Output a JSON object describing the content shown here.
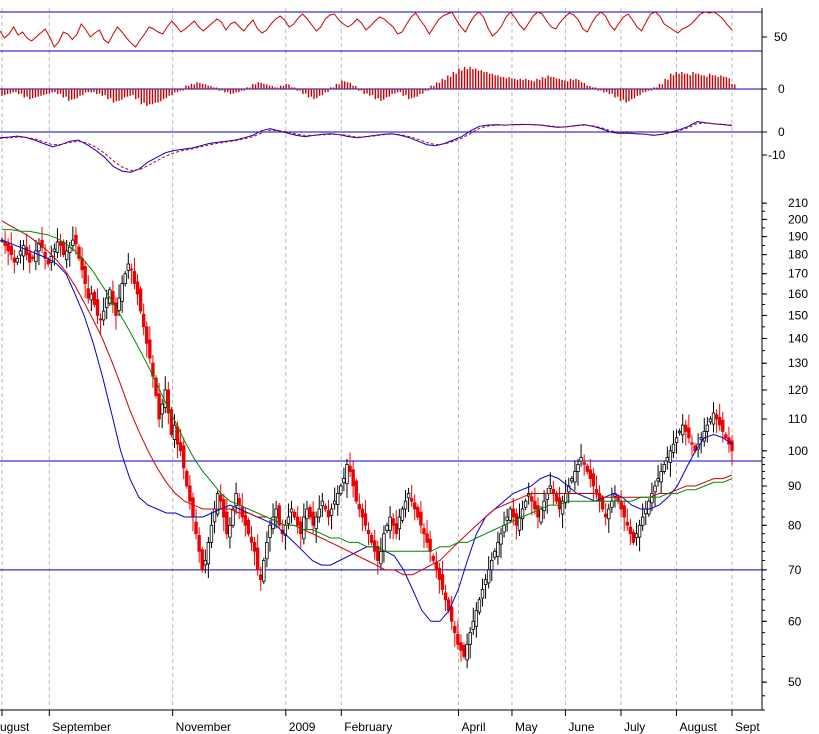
{
  "chart_data": [
    {
      "panel": "oscillator",
      "type": "line",
      "y_ticks": [
        {
          "value": 50,
          "label": "50"
        }
      ],
      "reference_lines": [
        100,
        22
      ],
      "series": [
        {
          "color": "#cc0000",
          "values": [
            62,
            48,
            56,
            70,
            54,
            60,
            48,
            42,
            50,
            58,
            66,
            50,
            30,
            40,
            60,
            56,
            45,
            55,
            76,
            64,
            50,
            58,
            64,
            45,
            38,
            55,
            70,
            60,
            48,
            38,
            30,
            44,
            56,
            70,
            66,
            60,
            56,
            70,
            82,
            72,
            60,
            66,
            74,
            82,
            70,
            62,
            70,
            78,
            86,
            80,
            64,
            76,
            80,
            70,
            62,
            74,
            84,
            66,
            58,
            64,
            76,
            86,
            92,
            84,
            70,
            76,
            88,
            96,
            86,
            74,
            62,
            70,
            86,
            94,
            96,
            84,
            76,
            70,
            76,
            86,
            78,
            64,
            72,
            82,
            90,
            86,
            78,
            70,
            56,
            60,
            76,
            90,
            98,
            84,
            72,
            56,
            70,
            84,
            92,
            96,
            100,
            84,
            70,
            60,
            78,
            92,
            100,
            90,
            68,
            52,
            60,
            72,
            90,
            100,
            88,
            74,
            64,
            78,
            92,
            100,
            96,
            82,
            70,
            66,
            80,
            90,
            98,
            94,
            84,
            66,
            60,
            78,
            92,
            100,
            92,
            74,
            64,
            78,
            90,
            96,
            84,
            70,
            62,
            80,
            96,
            100,
            92,
            76,
            70,
            64,
            58,
            66,
            70,
            76,
            86,
            96,
            100,
            98,
            100,
            94,
            86,
            74,
            64
          ]
        }
      ]
    },
    {
      "panel": "histogram",
      "type": "bar",
      "y_ticks": [
        {
          "value": 0,
          "label": "0"
        }
      ],
      "zero_line": 0,
      "values": [
        -0.4,
        -0.3,
        -0.2,
        -0.3,
        -0.5,
        -0.6,
        -0.5,
        -0.4,
        -0.3,
        -0.2,
        -0.3,
        -0.5,
        -0.7,
        -0.6,
        -0.4,
        -0.2,
        -0.2,
        -0.3,
        -0.4,
        -0.6,
        -0.8,
        -0.7,
        -0.5,
        -0.4,
        -0.6,
        -0.9,
        -1.0,
        -0.9,
        -0.8,
        -0.6,
        -0.4,
        -0.2,
        -0.1,
        0.2,
        0.3,
        0.4,
        0.3,
        0.2,
        0.1,
        -0.1,
        -0.2,
        -0.3,
        -0.2,
        -0.1,
        0.1,
        0.3,
        0.4,
        0.3,
        0.2,
        0.1,
        0.2,
        0.3,
        0.1,
        -0.1,
        -0.3,
        -0.5,
        -0.6,
        -0.4,
        -0.2,
        0.1,
        0.3,
        0.5,
        0.4,
        0.2,
        -0.1,
        -0.3,
        -0.4,
        -0.6,
        -0.7,
        -0.5,
        -0.3,
        -0.2,
        -0.4,
        -0.6,
        -0.5,
        -0.3,
        -0.1,
        0.2,
        0.4,
        0.6,
        0.8,
        1.0,
        1.2,
        1.3,
        1.3,
        1.2,
        1.1,
        1.0,
        0.9,
        0.8,
        0.7,
        0.7,
        0.6,
        0.6,
        0.6,
        0.5,
        0.6,
        0.7,
        0.8,
        0.7,
        0.6,
        0.5,
        0.6,
        0.6,
        0.4,
        0.2,
        0.1,
        -0.1,
        -0.2,
        -0.3,
        -0.5,
        -0.7,
        -0.8,
        -0.6,
        -0.4,
        -0.2,
        -0.1,
        0.1,
        0.3,
        0.6,
        0.9,
        1.0,
        1.0,
        0.9,
        1.0,
        0.9,
        0.8,
        0.9,
        0.8,
        0.8,
        0.7,
        0.3
      ]
    },
    {
      "panel": "macd",
      "type": "line",
      "y_ticks": [
        {
          "value": 0,
          "label": "0"
        },
        {
          "value": -10,
          "label": "-10"
        }
      ],
      "zero_line": 0,
      "series": [
        {
          "style": "solid",
          "color": "#0000cc",
          "values": [
            -2.5,
            -2.2,
            -1.8,
            -2.4,
            -3.5,
            -5.0,
            -6.5,
            -5.5,
            -4.0,
            -3.5,
            -5.5,
            -8.0,
            -11,
            -15,
            -17,
            -17.5,
            -16,
            -13,
            -11,
            -9,
            -8,
            -7.5,
            -7,
            -6,
            -5,
            -4.5,
            -4,
            -3.5,
            -2.5,
            -1.5,
            0.5,
            1.5,
            0.5,
            -0.5,
            -1.5,
            -2,
            -1.5,
            -1,
            -0.8,
            -1.2,
            -2.0,
            -2.5,
            -2.0,
            -1.5,
            -1.0,
            -0.8,
            -1.5,
            -2.5,
            -4.0,
            -5.5,
            -6.0,
            -5.0,
            -3.5,
            -2.0,
            0.5,
            2.5,
            3.0,
            3.2,
            3.0,
            3.2,
            3.3,
            3.2,
            3.0,
            2.5,
            2.0,
            2.3,
            2.8,
            3.2,
            2.5,
            1.5,
            0,
            -0.5,
            -0.5,
            -0.8,
            -1.0,
            -1.5,
            -1.0,
            0,
            1.0,
            2.5,
            4.5,
            4.0,
            3.5,
            3.2,
            2.8
          ]
        },
        {
          "style": "dashed",
          "color": "#cc0000",
          "values": [
            -2.8,
            -2.5,
            -2.2,
            -2.3,
            -3.0,
            -4.2,
            -5.5,
            -5.4,
            -4.6,
            -4.0,
            -4.8,
            -6.6,
            -9.2,
            -12.5,
            -15.2,
            -16.7,
            -16.4,
            -14.6,
            -12.5,
            -10.5,
            -9.0,
            -8.0,
            -7.4,
            -6.5,
            -5.6,
            -4.9,
            -4.3,
            -3.8,
            -3.0,
            -2.1,
            -0.5,
            0.8,
            0.6,
            0,
            -0.9,
            -1.5,
            -1.5,
            -1.2,
            -1.0,
            -1.1,
            -1.6,
            -2.2,
            -2.1,
            -1.7,
            -1.2,
            -0.9,
            -1.2,
            -2.0,
            -3.2,
            -4.6,
            -5.5,
            -5.2,
            -4.1,
            -2.7,
            -0.6,
            1.6,
            2.6,
            3.0,
            3.0,
            3.1,
            3.2,
            3.2,
            3.1,
            2.7,
            2.2,
            2.2,
            2.6,
            3.0,
            2.7,
            1.9,
            0.6,
            -0.2,
            -0.4,
            -0.7,
            -0.9,
            -1.3,
            -1.1,
            -0.3,
            0.6,
            1.9,
            3.7,
            3.9,
            3.6,
            3.3,
            3.0
          ]
        }
      ]
    },
    {
      "panel": "price",
      "type": "candlestick",
      "y_scale": "log",
      "y_ticks": [
        {
          "value": 210,
          "label": "210"
        },
        {
          "value": 200,
          "label": "200"
        },
        {
          "value": 190,
          "label": "190"
        },
        {
          "value": 180,
          "label": "180"
        },
        {
          "value": 170,
          "label": "170"
        },
        {
          "value": 160,
          "label": "160"
        },
        {
          "value": 150,
          "label": "150"
        },
        {
          "value": 140,
          "label": "140"
        },
        {
          "value": 130,
          "label": "130"
        },
        {
          "value": 120,
          "label": "120"
        },
        {
          "value": 110,
          "label": "110"
        },
        {
          "value": 100,
          "label": "100"
        },
        {
          "value": 90,
          "label": "90"
        },
        {
          "value": 80,
          "label": "80"
        },
        {
          "value": 70,
          "label": "70"
        },
        {
          "value": 60,
          "label": "60"
        },
        {
          "value": 50,
          "label": "50"
        }
      ],
      "x_labels": [
        {
          "label": "August",
          "at": 0
        },
        {
          "label": "September",
          "at": 23
        },
        {
          "label": "November",
          "at": 83
        },
        {
          "label": "2009",
          "at": 138
        },
        {
          "label": "February",
          "at": 165
        },
        {
          "label": "April",
          "at": 222
        },
        {
          "label": "May",
          "at": 248
        },
        {
          "label": "June",
          "at": 274
        },
        {
          "label": "July",
          "at": 301
        },
        {
          "label": "August",
          "at": 328
        },
        {
          "label": "Sept",
          "at": 355
        }
      ],
      "reference_lines": [
        97,
        70
      ],
      "close": [
        188,
        185,
        182,
        180,
        176,
        178,
        182,
        185,
        180,
        176,
        178,
        182,
        186,
        184,
        178,
        175,
        179,
        183,
        187,
        185,
        180,
        182,
        184,
        188,
        186,
        178,
        172,
        165,
        158,
        160,
        155,
        150,
        148,
        152,
        158,
        162,
        155,
        150,
        158,
        165,
        170,
        175,
        172,
        165,
        160,
        152,
        145,
        138,
        132,
        125,
        118,
        110,
        115,
        120,
        112,
        105,
        108,
        102,
        100,
        95,
        90,
        86,
        82,
        78,
        74,
        70,
        72,
        76,
        80,
        84,
        88,
        86,
        82,
        78,
        80,
        84,
        88,
        85,
        82,
        80,
        78,
        76,
        74,
        70,
        68,
        72,
        76,
        80,
        82,
        84,
        80,
        78,
        80,
        82,
        84,
        82,
        80,
        78,
        82,
        84,
        82,
        80,
        82,
        84,
        86,
        84,
        82,
        84,
        86,
        88,
        90,
        92,
        96,
        94,
        90,
        86,
        84,
        82,
        80,
        78,
        76,
        74,
        72,
        74,
        78,
        80,
        82,
        80,
        78,
        82,
        84,
        86,
        88,
        86,
        84,
        82,
        80,
        78,
        76,
        74,
        72,
        70,
        68,
        66,
        64,
        62,
        60,
        58,
        56,
        55,
        54,
        56,
        58,
        60,
        62,
        64,
        66,
        68,
        70,
        72,
        74,
        76,
        78,
        80,
        82,
        84,
        82,
        80,
        82,
        84,
        86,
        88,
        86,
        84,
        82,
        84,
        86,
        88,
        90,
        88,
        86,
        84,
        86,
        88,
        90,
        92,
        94,
        96,
        98,
        96,
        94,
        92,
        90,
        88,
        86,
        84,
        82,
        84,
        86,
        88,
        86,
        84,
        82,
        80,
        78,
        76,
        78,
        80,
        82,
        84,
        86,
        88,
        90,
        92,
        94,
        96,
        98,
        100,
        102,
        104,
        106,
        108,
        106,
        104,
        102,
        100,
        102,
        104,
        106,
        108,
        110,
        112,
        110,
        108,
        106,
        104,
        102,
        100
      ],
      "series": [
        {
          "name": "",
          "color": "#0000cc",
          "values": [
            188,
            186,
            184,
            182,
            180,
            178,
            175,
            170,
            160,
            150,
            138,
            125,
            112,
            100,
            92,
            87,
            85,
            84,
            83,
            83,
            82,
            82,
            82,
            83,
            84,
            85,
            84,
            83,
            82,
            81,
            80,
            78,
            76,
            74,
            72,
            71,
            71,
            72,
            73,
            74,
            75,
            75,
            74,
            73,
            70,
            66,
            62,
            60,
            60,
            62,
            66,
            72,
            78,
            82,
            84,
            86,
            88,
            89,
            90,
            92,
            93,
            92,
            90,
            88,
            87,
            86,
            87,
            88,
            87,
            85,
            84,
            84,
            85,
            87,
            90,
            95,
            100,
            104,
            105,
            104,
            102
          ]
        },
        {
          "name": "",
          "color": "#cc0000",
          "values": [
            199,
            196,
            193,
            190,
            186,
            182,
            177,
            171,
            164,
            156,
            148,
            140,
            131,
            122,
            113,
            106,
            100,
            95,
            91,
            88,
            86,
            85,
            84,
            84,
            84,
            84,
            83,
            83,
            82,
            82,
            81,
            80,
            80,
            79,
            78,
            77,
            76,
            75,
            74,
            73,
            72,
            71,
            70,
            70,
            69,
            69,
            70,
            71,
            72,
            74,
            76,
            78,
            80,
            82,
            84,
            85,
            86,
            87,
            88,
            88,
            88,
            88,
            88,
            88,
            88,
            88,
            87,
            87,
            87,
            87,
            87,
            87,
            88,
            88,
            89,
            90,
            90,
            91,
            92,
            92,
            93
          ]
        },
        {
          "name": "",
          "color": "#008800",
          "values": [
            194,
            194,
            193,
            193,
            192,
            191,
            189,
            186,
            182,
            177,
            171,
            164,
            157,
            150,
            143,
            136,
            129,
            122,
            115,
            109,
            103,
            98,
            94,
            91,
            88,
            86,
            85,
            84,
            83,
            82,
            81,
            80,
            80,
            79,
            79,
            78,
            77,
            77,
            76,
            76,
            75,
            75,
            74,
            74,
            74,
            74,
            74,
            74,
            75,
            75,
            76,
            76,
            77,
            78,
            79,
            80,
            81,
            82,
            83,
            84,
            85,
            85,
            86,
            86,
            86,
            86,
            86,
            86,
            86,
            86,
            87,
            87,
            87,
            88,
            88,
            89,
            89,
            90,
            91,
            91,
            92
          ]
        }
      ]
    }
  ]
}
